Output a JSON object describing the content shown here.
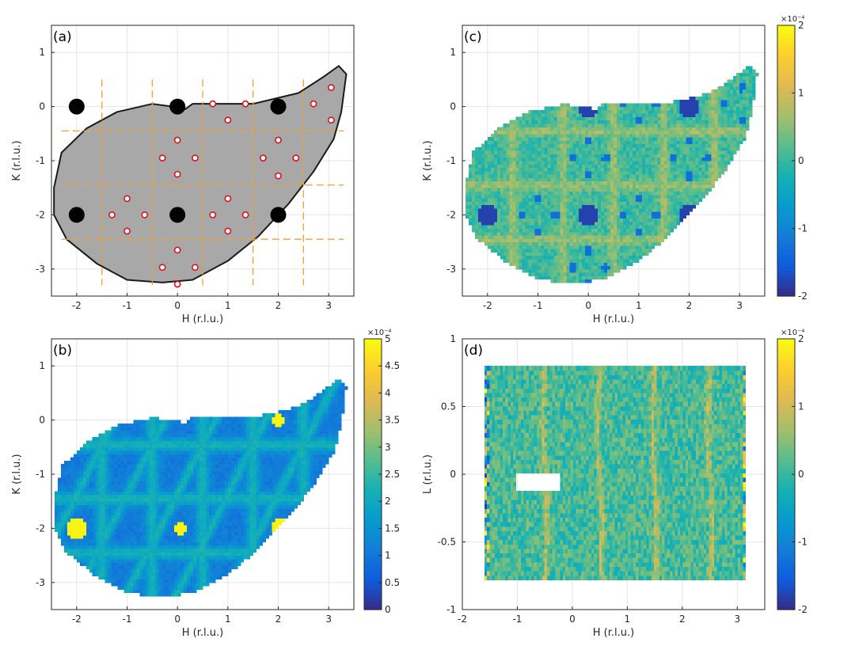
{
  "chart_data": [
    {
      "id": "a",
      "type": "scatter",
      "panel_label": "(a)",
      "xlabel": "H (r.l.u.)",
      "ylabel": "K (r.l.u.)",
      "xlim": [
        -2.5,
        3.5
      ],
      "ylim": [
        -3.5,
        1.5
      ],
      "xticks": [
        -2,
        -1,
        0,
        1,
        2,
        3
      ],
      "yticks": [
        -3,
        -2,
        -1,
        0,
        1
      ],
      "region_fill": "#a8a8a8",
      "region_outline": [
        [
          -2.3,
          -0.85
        ],
        [
          -1.8,
          -0.4
        ],
        [
          -1.2,
          -0.1
        ],
        [
          -0.5,
          0.05
        ],
        [
          -0.1,
          0.0
        ],
        [
          0.15,
          -0.05
        ],
        [
          0.3,
          0.05
        ],
        [
          1.5,
          0.05
        ],
        [
          2.4,
          0.25
        ],
        [
          2.9,
          0.55
        ],
        [
          3.2,
          0.75
        ],
        [
          3.35,
          0.6
        ],
        [
          3.25,
          -0.1
        ],
        [
          3.1,
          -0.6
        ],
        [
          2.7,
          -1.2
        ],
        [
          2.2,
          -1.8
        ],
        [
          1.6,
          -2.4
        ],
        [
          1.0,
          -2.85
        ],
        [
          0.3,
          -3.2
        ],
        [
          -0.3,
          -3.25
        ],
        [
          -1.0,
          -3.2
        ],
        [
          -1.6,
          -2.9
        ],
        [
          -2.2,
          -2.45
        ],
        [
          -2.45,
          -2.0
        ],
        [
          -2.45,
          -1.5
        ]
      ],
      "dashed_lines_x": [
        -1.5,
        -0.5,
        0.5,
        1.5,
        2.5
      ],
      "dashed_lines_y": [
        -0.45,
        -1.45,
        -2.45
      ],
      "line_color": "#f0a030",
      "bragg_peaks": [
        [
          -2,
          0
        ],
        [
          0,
          0
        ],
        [
          2,
          0
        ],
        [
          -2,
          -2
        ],
        [
          0,
          -2
        ],
        [
          2,
          -2
        ]
      ],
      "satellite_peaks": [
        [
          0.7,
          0.05
        ],
        [
          1.35,
          0.05
        ],
        [
          1.0,
          -0.25
        ],
        [
          3.05,
          0.35
        ],
        [
          2.7,
          0.05
        ],
        [
          3.05,
          -0.25
        ],
        [
          0.0,
          -0.62
        ],
        [
          -0.3,
          -0.95
        ],
        [
          0.35,
          -0.95
        ],
        [
          0.0,
          -1.25
        ],
        [
          2.0,
          -0.62
        ],
        [
          1.7,
          -0.95
        ],
        [
          2.35,
          -0.95
        ],
        [
          2.0,
          -1.28
        ],
        [
          -1.0,
          -1.7
        ],
        [
          -1.3,
          -2.0
        ],
        [
          -0.65,
          -2.0
        ],
        [
          -1.0,
          -2.3
        ],
        [
          1.0,
          -1.7
        ],
        [
          0.7,
          -2.0
        ],
        [
          1.35,
          -2.0
        ],
        [
          1.0,
          -2.3
        ],
        [
          0.0,
          -2.65
        ],
        [
          -0.3,
          -2.97
        ],
        [
          0.35,
          -2.97
        ],
        [
          0.0,
          -3.28
        ]
      ]
    },
    {
      "id": "c",
      "type": "heatmap",
      "panel_label": "(c)",
      "xlabel": "H (r.l.u.)",
      "ylabel": "K (r.l.u.)",
      "xlim": [
        -2.5,
        3.5
      ],
      "ylim": [
        -3.5,
        1.5
      ],
      "xticks": [
        -2,
        -1,
        0,
        1,
        2,
        3
      ],
      "yticks": [
        -3,
        -2,
        -1,
        0,
        1
      ],
      "colormap": "parula",
      "clim": [
        -2,
        2
      ],
      "colorbar_ticks": [
        -2,
        -1,
        0,
        1,
        2
      ],
      "colorbar_exponent": "×10⁻⁴",
      "features": "diffuse lines near H=-1.5,-0.5,0.5,1.5,2.5 and K=-0.45,-1.45,-2.45; negative (blue) holes at Bragg positions"
    },
    {
      "id": "b",
      "type": "heatmap",
      "panel_label": "(b)",
      "xlabel": "H (r.l.u.)",
      "ylabel": "K (r.l.u.)",
      "xlim": [
        -2.5,
        3.5
      ],
      "ylim": [
        -3.5,
        1.5
      ],
      "xticks": [
        -2,
        -1,
        0,
        1,
        2,
        3
      ],
      "yticks": [
        -3,
        -2,
        -1,
        0,
        1
      ],
      "colormap": "parula",
      "clim": [
        0,
        5
      ],
      "colorbar_ticks": [
        0,
        0.5,
        1,
        1.5,
        2,
        2.5,
        3,
        3.5,
        4,
        4.5,
        5
      ],
      "colorbar_exponent": "×10⁻⁴",
      "features": "hexagonal network of diffuse lines; yellow hot spots near (-2,-2), (0,-2), (2,-2), (2,0)"
    },
    {
      "id": "d",
      "type": "heatmap",
      "panel_label": "(d)",
      "xlabel": "H (r.l.u.)",
      "ylabel": "L (r.l.u.)",
      "xlim": [
        -2,
        3.5
      ],
      "ylim": [
        -1,
        1
      ],
      "xticks": [
        -2,
        -1,
        0,
        1,
        2,
        3
      ],
      "yticks": [
        -1,
        -0.5,
        0,
        0.5,
        1
      ],
      "colormap": "parula",
      "clim": [
        -2,
        2
      ],
      "colorbar_ticks": [
        -2,
        -1,
        0,
        1,
        2
      ],
      "colorbar_exponent": "×10⁻⁴",
      "data_extent_h": [
        -1.6,
        3.15
      ],
      "data_extent_l": [
        -0.78,
        0.8
      ],
      "gap": {
        "h": [
          -1.05,
          -0.2
        ],
        "l": [
          -0.1,
          0.0
        ]
      },
      "features": "vertical rods at H≈-0.5, 0.5, 1.5, 2.5"
    }
  ]
}
